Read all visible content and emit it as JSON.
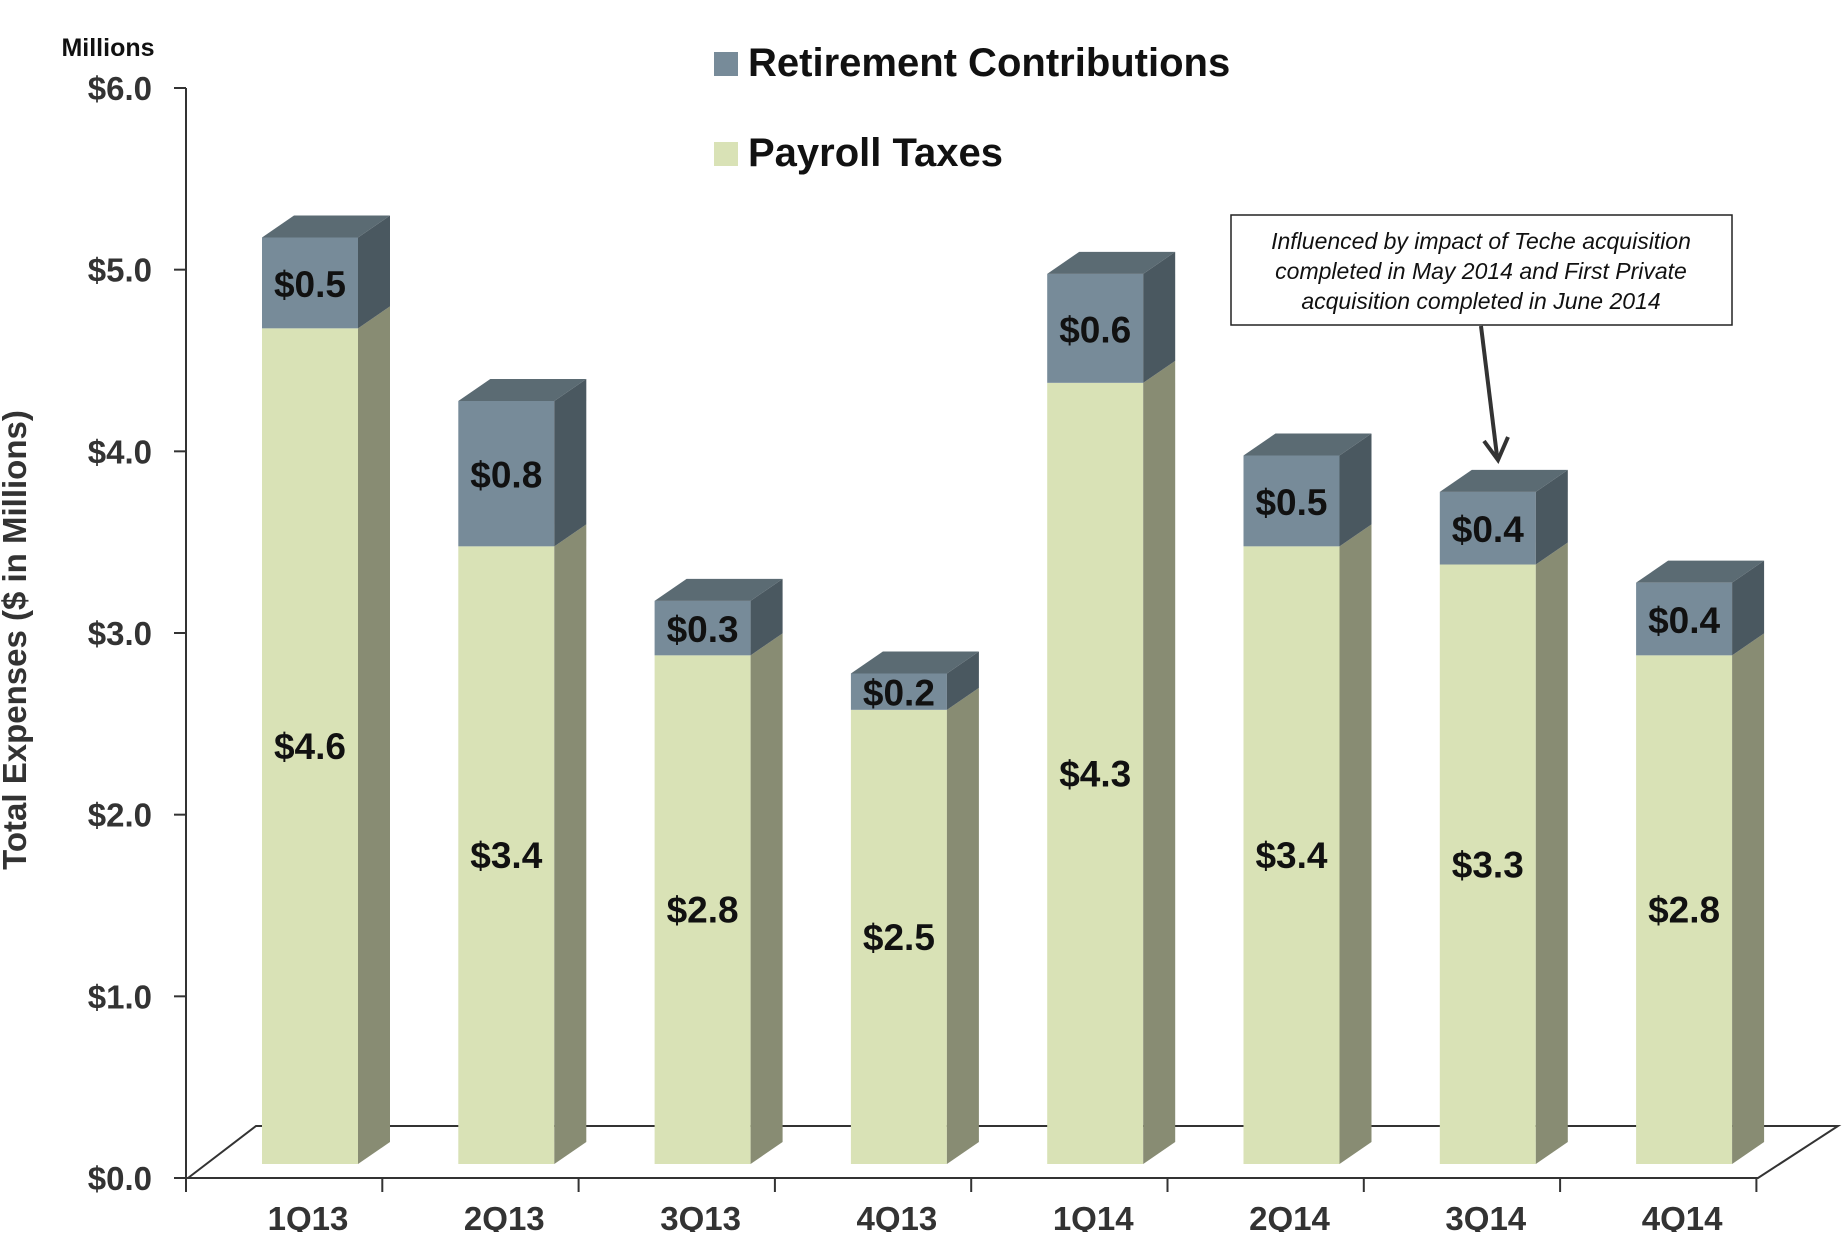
{
  "chart_data": {
    "type": "bar",
    "stacked": true,
    "style": "3d",
    "categories": [
      "1Q13",
      "2Q13",
      "3Q13",
      "4Q13",
      "1Q14",
      "2Q14",
      "3Q14",
      "4Q14"
    ],
    "series": [
      {
        "name": "Payroll Taxes",
        "values": [
          4.6,
          3.4,
          2.8,
          2.5,
          4.3,
          3.4,
          3.3,
          2.8
        ],
        "labels": [
          "$4.6",
          "$3.4",
          "$2.8",
          "$2.5",
          "$4.3",
          "$3.4",
          "$3.3",
          "$2.8"
        ]
      },
      {
        "name": "Retirement Contributions",
        "values": [
          0.5,
          0.8,
          0.3,
          0.2,
          0.6,
          0.5,
          0.4,
          0.4
        ],
        "labels": [
          "$0.5",
          "$0.8",
          "$0.3",
          "$0.2",
          "$0.6",
          "$0.5",
          "$0.4",
          "$0.4"
        ]
      }
    ],
    "ylabel": "Total  Expenses ($ in Millions)",
    "unit_label": "Millions",
    "ylim": [
      0,
      6
    ],
    "yticks": [
      "$0.0",
      "$1.0",
      "$2.0",
      "$3.0",
      "$4.0",
      "$5.0",
      "$6.0"
    ],
    "legend_position": "top",
    "annotation": {
      "text_lines": [
        "Influenced by impact of Teche acquisition",
        "completed in May 2014 and First Private",
        "acquisition completed in June 2014"
      ],
      "points_to": "3Q14"
    },
    "colors": {
      "Payroll Taxes": {
        "front": "#d9e2b6",
        "side": "#888c73",
        "top": "#c5cfa0"
      },
      "Retirement Contributions": {
        "front": "#778b99",
        "side": "#4a5860",
        "top": "#5b6b73"
      }
    }
  }
}
